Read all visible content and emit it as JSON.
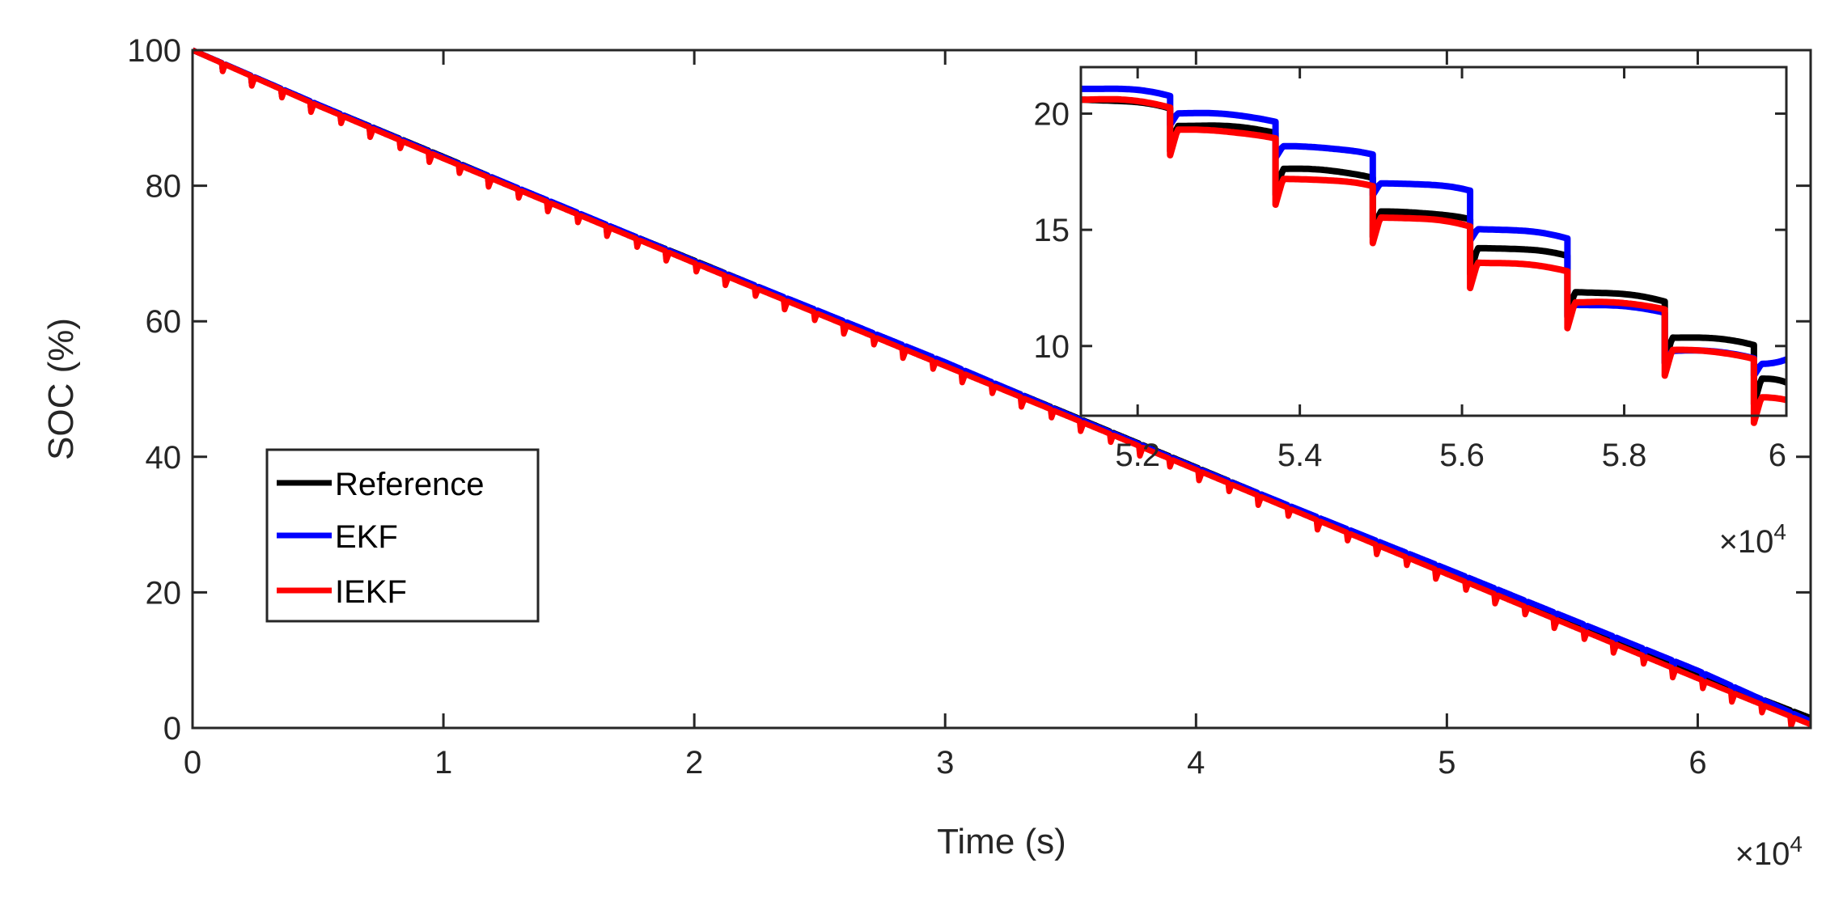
{
  "chart_data": [
    {
      "id": "main",
      "type": "line",
      "xlabel": "Time (s)",
      "ylabel": "SOC (%)",
      "xlim": [
        0,
        64500
      ],
      "ylim": [
        0,
        100
      ],
      "xticks": [
        0,
        10000,
        20000,
        30000,
        40000,
        50000,
        60000
      ],
      "xtick_labels": [
        "0",
        "1",
        "2",
        "3",
        "4",
        "5",
        "6"
      ],
      "yticks": [
        0,
        20,
        40,
        60,
        80,
        100
      ],
      "ytick_labels": [
        "0",
        "20",
        "40",
        "60",
        "80",
        "100"
      ],
      "x_multiplier": "×10",
      "x_multiplier_exp": "4",
      "grid": false,
      "legend_position": "middle-left",
      "series": [
        {
          "name": "Reference",
          "color": "#000000",
          "x": [
            0,
            5000,
            10000,
            15000,
            20000,
            25000,
            30000,
            35000,
            40000,
            45000,
            50000,
            55000,
            60000,
            64500
          ],
          "y": [
            100,
            92,
            84.3,
            76.5,
            69,
            61.4,
            53.9,
            46.2,
            38.5,
            30.8,
            23.1,
            15.3,
            7.9,
            1.5
          ]
        },
        {
          "name": "EKF",
          "color": "#0000ff",
          "x": [
            0,
            5000,
            10000,
            15000,
            20000,
            25000,
            30000,
            35000,
            40000,
            45000,
            50000,
            55000,
            60000,
            64500
          ],
          "y": [
            100,
            92,
            84.2,
            76.6,
            68.9,
            61.5,
            54,
            46.1,
            38.4,
            30.9,
            23.5,
            16,
            8.5,
            1
          ]
        },
        {
          "name": "IEKF",
          "color": "#ff0000",
          "x": [
            0,
            5000,
            10000,
            15000,
            20000,
            25000,
            30000,
            35000,
            40000,
            45000,
            50000,
            55000,
            60000,
            64500
          ],
          "y": [
            100,
            91.8,
            84,
            76.3,
            68.6,
            61,
            53.4,
            45.8,
            38.1,
            30.4,
            22.7,
            15,
            7.3,
            0.5
          ]
        }
      ]
    },
    {
      "id": "inset",
      "type": "line",
      "xlim": [
        51300,
        60000
      ],
      "ylim": [
        7,
        22
      ],
      "xticks": [
        52000,
        54000,
        56000,
        58000,
        60000
      ],
      "xtick_labels": [
        "5.2",
        "5.4",
        "5.6",
        "5.8",
        "6"
      ],
      "yticks": [
        10,
        15,
        20
      ],
      "ytick_labels": [
        "10",
        "15",
        "20"
      ],
      "x_multiplier": "×10",
      "x_multiplier_exp": "4",
      "series": [
        {
          "name": "Reference",
          "color": "#000000",
          "steps": [
            [
              51300,
              20.6
            ],
            [
              52400,
              19.5
            ],
            [
              53700,
              17.6
            ],
            [
              54900,
              15.8
            ],
            [
              56100,
              14.2
            ],
            [
              57300,
              12.3
            ],
            [
              58500,
              10.4
            ],
            [
              59600,
              8.6
            ],
            [
              60000,
              8.4
            ]
          ]
        },
        {
          "name": "EKF",
          "color": "#0000ff",
          "steps": [
            [
              51300,
              21.1
            ],
            [
              52400,
              20.0
            ],
            [
              53700,
              18.6
            ],
            [
              54900,
              17.0
            ],
            [
              56100,
              15.0
            ],
            [
              57300,
              11.8
            ],
            [
              58500,
              9.8
            ],
            [
              59600,
              9.2
            ],
            [
              60000,
              9.4
            ]
          ]
        },
        {
          "name": "IEKF",
          "color": "#ff0000",
          "steps": [
            [
              51300,
              20.6
            ],
            [
              52400,
              19.3
            ],
            [
              53700,
              17.2
            ],
            [
              54900,
              15.5
            ],
            [
              56100,
              13.6
            ],
            [
              57300,
              11.9
            ],
            [
              58500,
              9.8
            ],
            [
              59600,
              7.8
            ],
            [
              60000,
              7.7
            ]
          ]
        }
      ]
    }
  ]
}
